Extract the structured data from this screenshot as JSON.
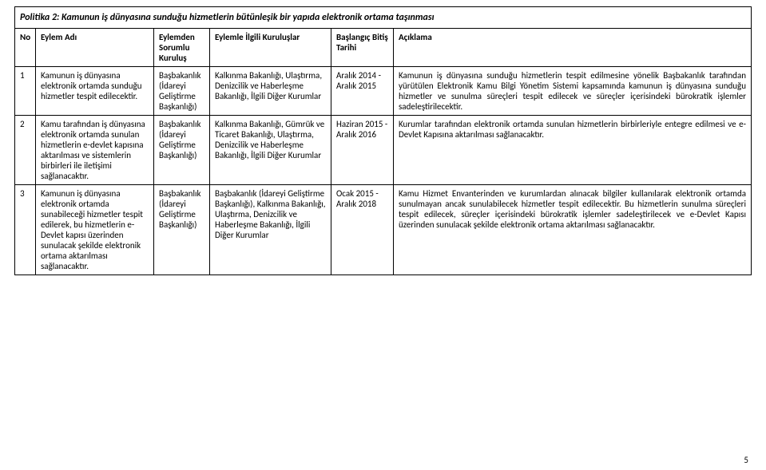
{
  "title": "Politika 2: Kamunun iş dünyasına sunduğu hizmetlerin bütünleşik bir yapıda elektronik ortama taşınması",
  "page_number": "5",
  "headers": {
    "no": "No",
    "eylem_adi": "Eylem Adı",
    "sorumlu": "Eylemden Sorumlu Kuruluş",
    "ilgili": "Eylemle İlgili Kuruluşlar",
    "tarih": "Başlangıç Bitiş Tarihi",
    "aciklama": "Açıklama"
  },
  "rows": [
    {
      "no": "1",
      "eylem_adi": "Kamunun iş dünyasına elektronik ortamda sunduğu hizmetler tespit edilecektir.",
      "sorumlu": "Başbakanlık (İdareyi Geliştirme Başkanlığı)",
      "ilgili": "Kalkınma Bakanlığı, Ulaştırma, Denizcilik ve Haberleşme Bakanlığı,\nİlgili Diğer Kurumlar",
      "tarih": "Aralık 2014 - Aralık 2015",
      "aciklama": "Kamunun iş dünyasına sunduğu hizmetlerin tespit edilmesine yönelik Başbakanlık tarafından yürütülen Elektronik Kamu Bilgi Yönetim Sistemi kapsamında kamunun iş dünyasına sunduğu hizmetler ve sunulma süreçleri tespit edilecek ve süreçler içerisindeki bürokratik işlemler sadeleştirilecektir."
    },
    {
      "no": "2",
      "eylem_adi": "Kamu tarafından iş dünyasına elektronik ortamda sunulan hizmetlerin e-devlet kapısına aktarılması ve sistemlerin birbirleri ile iletişimi sağlanacaktır.",
      "sorumlu": "Başbakanlık (İdareyi Geliştirme Başkanlığı)",
      "ilgili": "Kalkınma Bakanlığı,\nGümrük ve Ticaret Bakanlığı,\nUlaştırma, Denizcilik ve Haberleşme Bakanlığı,\nİlgili Diğer Kurumlar",
      "tarih": "Haziran 2015 - Aralık 2016",
      "aciklama": "Kurumlar tarafından elektronik ortamda sunulan hizmetlerin birbirleriyle entegre edilmesi ve e-Devlet Kapısına aktarılması sağlanacaktır."
    },
    {
      "no": "3",
      "eylem_adi": "Kamunun iş dünyasına elektronik ortamda sunabileceği hizmetler tespit edilerek, bu hizmetlerin e-Devlet kapısı üzerinden sunulacak şekilde elektronik ortama aktarılması sağlanacaktır.",
      "sorumlu": "Başbakanlık (İdareyi Geliştirme Başkanlığı)",
      "ilgili": "Başbakanlık (İdareyi Geliştirme Başkanlığı),\nKalkınma Bakanlığı,\nUlaştırma, Denizcilik ve Haberleşme Bakanlığı,\nİlgili Diğer Kurumlar",
      "tarih": "Ocak 2015 - Aralık 2018",
      "aciklama": "Kamu Hizmet Envanterinden ve kurumlardan alınacak bilgiler kullanılarak elektronik ortamda sunulmayan ancak sunulabilecek hizmetler tespit edilecektir.  Bu hizmetlerin sunulma süreçleri tespit edilecek, süreçler içerisindeki bürokratik işlemler sadeleştirilecek ve e-Devlet Kapısı üzerinden sunulacak şekilde elektronik ortama aktarılması sağlanacaktır."
    }
  ]
}
